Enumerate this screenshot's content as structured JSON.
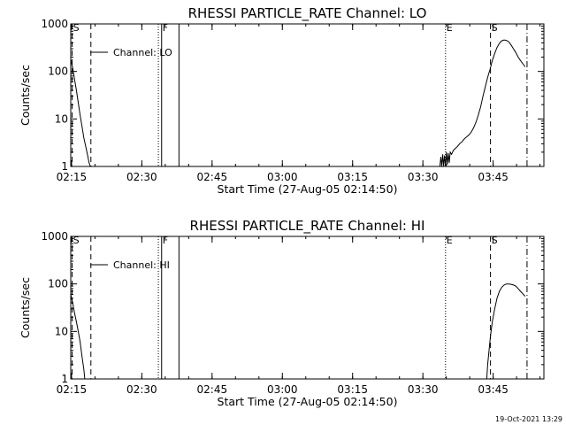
{
  "chart_data": [
    {
      "type": "line",
      "title": "RHESSI PARTICLE_RATE Channel: LO",
      "xlabel": "Start Time (27-Aug-05 02:14:50)",
      "ylabel": "Counts/sec",
      "x_tick_labels": [
        "02:15",
        "02:30",
        "02:45",
        "03:00",
        "03:15",
        "03:30",
        "03:45"
      ],
      "x_tick_minutes": [
        0.17,
        15.17,
        30.17,
        45.17,
        60.17,
        75.17,
        90.17
      ],
      "xlim_minutes": [
        0,
        101
      ],
      "yscale": "log",
      "ylim": [
        1,
        1000
      ],
      "y_tick_labels": [
        "1",
        "10",
        "100",
        "1000"
      ],
      "y_tick_values": [
        1,
        10,
        100,
        1000
      ],
      "legend": {
        "label": "Channel: LO",
        "placement": "top-left"
      },
      "event_markers": [
        {
          "label": "S",
          "minute": 0.3,
          "style": "dashed"
        },
        {
          "minute": 4.3,
          "style": "dashed"
        },
        {
          "minute": 18.7,
          "style": "dotted"
        },
        {
          "label": "F",
          "minute": 19.4,
          "style": "solid"
        },
        {
          "minute": 23.1,
          "style": "solid"
        },
        {
          "label": "E",
          "minute": 80.0,
          "style": "dotted"
        },
        {
          "label": "S",
          "minute": 89.6,
          "style": "dashed"
        },
        {
          "minute": 97.4,
          "style": "dashdot"
        }
      ],
      "series": [
        {
          "minutes": [
            0,
            0.4,
            0.8,
            1.2,
            1.6,
            2.0,
            2.4,
            2.8,
            3.2,
            3.6,
            3.9,
            4.2,
            78.8,
            79.0,
            79.2,
            79.4,
            79.6,
            79.8,
            80.0,
            80.2,
            80.4,
            80.6,
            80.8,
            81.0,
            81.3,
            81.7,
            82.1,
            82.5,
            83.0,
            83.5,
            84.0,
            84.5,
            85.0,
            85.5,
            86.0,
            86.5,
            87.0,
            87.5,
            88.0,
            88.5,
            89.0,
            89.5,
            90.0,
            90.5,
            91.0,
            91.5,
            92.0,
            92.5,
            93.0,
            93.5,
            94.0,
            94.5,
            95.0,
            95.5,
            96.0,
            96.5,
            97.0
          ],
          "values": [
            180,
            120,
            70,
            40,
            22,
            12,
            7,
            4,
            2.6,
            1.7,
            1.2,
            1.0,
            1.0,
            1.6,
            1.0,
            1.8,
            1.0,
            1.7,
            1.0,
            2.0,
            1.1,
            1.9,
            1.2,
            2.0,
            1.8,
            2.2,
            2.4,
            2.6,
            3.0,
            3.3,
            3.8,
            4.2,
            4.6,
            5.3,
            6.5,
            8.5,
            12,
            18,
            30,
            48,
            75,
            110,
            170,
            240,
            320,
            390,
            440,
            460,
            450,
            420,
            360,
            300,
            250,
            200,
            170,
            145,
            125
          ]
        }
      ]
    },
    {
      "type": "line",
      "title": "RHESSI PARTICLE_RATE Channel: HI",
      "xlabel": "Start Time (27-Aug-05 02:14:50)",
      "ylabel": "Counts/sec",
      "x_tick_labels": [
        "02:15",
        "02:30",
        "02:45",
        "03:00",
        "03:15",
        "03:30",
        "03:45"
      ],
      "x_tick_minutes": [
        0.17,
        15.17,
        30.17,
        45.17,
        60.17,
        75.17,
        90.17
      ],
      "xlim_minutes": [
        0,
        101
      ],
      "yscale": "log",
      "ylim": [
        1,
        1000
      ],
      "y_tick_labels": [
        "1",
        "10",
        "100",
        "1000"
      ],
      "y_tick_values": [
        1,
        10,
        100,
        1000
      ],
      "legend": {
        "label": "Channel: HI",
        "placement": "top-left"
      },
      "event_markers": [
        {
          "label": "S",
          "minute": 0.3,
          "style": "dashed"
        },
        {
          "minute": 4.3,
          "style": "dashed"
        },
        {
          "minute": 18.7,
          "style": "dotted"
        },
        {
          "label": "F",
          "minute": 19.4,
          "style": "solid"
        },
        {
          "minute": 23.1,
          "style": "solid"
        },
        {
          "label": "E",
          "minute": 80.0,
          "style": "dotted"
        },
        {
          "label": "S",
          "minute": 89.6,
          "style": "dashed"
        },
        {
          "minute": 97.4,
          "style": "dashdot"
        }
      ],
      "series": [
        {
          "minutes": [
            0,
            0.4,
            0.8,
            1.2,
            1.6,
            2.0,
            2.4,
            2.8,
            3.0,
            88.8,
            89.0,
            89.3,
            89.6,
            90.0,
            90.5,
            91.0,
            91.5,
            92.0,
            92.5,
            93.0,
            93.5,
            94.0,
            94.5,
            95.0,
            95.5,
            96.0,
            96.5,
            97.0
          ],
          "values": [
            60,
            40,
            25,
            16,
            10,
            6,
            3,
            1.6,
            1.0,
            1.0,
            2.0,
            4.0,
            8.0,
            16,
            30,
            50,
            70,
            85,
            95,
            100,
            100,
            98,
            95,
            90,
            80,
            70,
            62,
            55
          ]
        }
      ]
    }
  ],
  "footer": {
    "timestamp": "19-Oct-2021 13:29"
  }
}
